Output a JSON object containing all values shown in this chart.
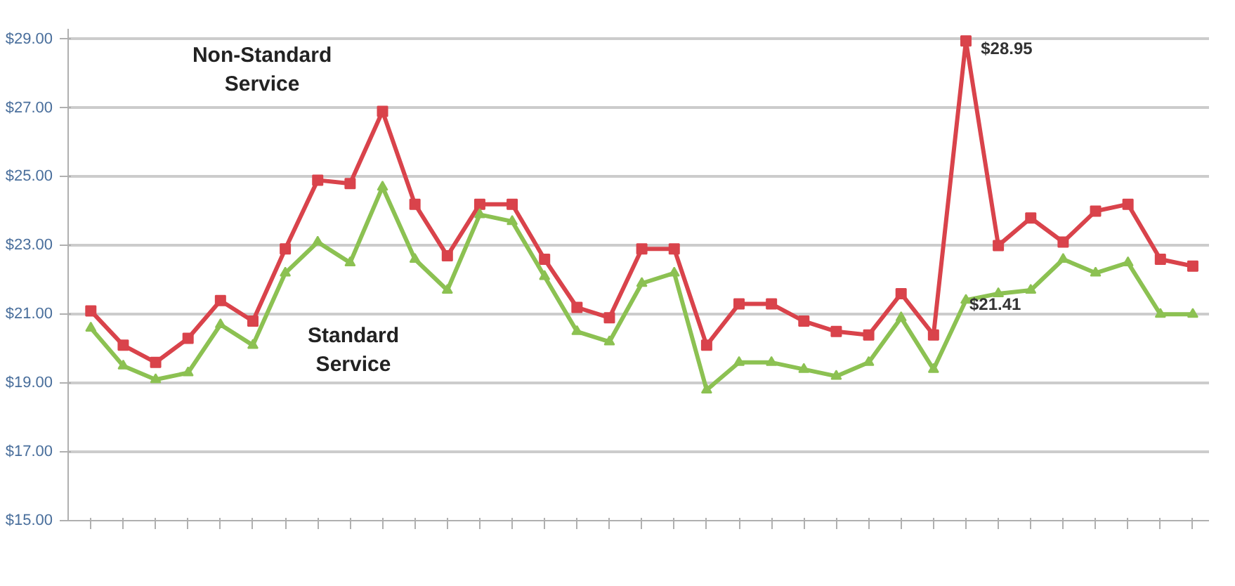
{
  "chart_data": {
    "type": "line",
    "categories": [
      null,
      null,
      null,
      null,
      null,
      null,
      null,
      null,
      null,
      null,
      null,
      null,
      null,
      null,
      null,
      null,
      null,
      null,
      null,
      null,
      null,
      null,
      null,
      null,
      null,
      null,
      null,
      null,
      null,
      null,
      null,
      null,
      null,
      null,
      null
    ],
    "ylim": [
      15,
      29.3
    ],
    "yticks": [
      {
        "value": 15,
        "label": "$15.00"
      },
      {
        "value": 17,
        "label": "$17.00"
      },
      {
        "value": 19,
        "label": "$19.00"
      },
      {
        "value": 21,
        "label": "$21.00"
      },
      {
        "value": 23,
        "label": "$23.00"
      },
      {
        "value": 25,
        "label": "$25.00"
      },
      {
        "value": 27,
        "label": "$27.00"
      },
      {
        "value": 29,
        "label": "$29.00"
      }
    ],
    "grid": "y",
    "series": [
      {
        "name": "Non-Standard Service",
        "color": "#d9434b",
        "marker": "square",
        "values": [
          21.1,
          20.1,
          19.6,
          20.3,
          21.4,
          20.8,
          22.9,
          24.9,
          24.8,
          26.9,
          24.2,
          22.7,
          24.2,
          24.2,
          22.6,
          21.2,
          20.9,
          22.9,
          22.9,
          20.1,
          21.3,
          21.3,
          20.8,
          20.5,
          20.4,
          21.6,
          20.4,
          28.95,
          23.0,
          23.8,
          23.1,
          24.0,
          24.2,
          22.6,
          22.4
        ]
      },
      {
        "name": "Standard Service",
        "color": "#8cc152",
        "marker": "triangle",
        "values": [
          20.6,
          19.5,
          19.1,
          19.3,
          20.7,
          20.1,
          22.2,
          23.1,
          22.5,
          24.7,
          22.6,
          21.7,
          23.9,
          23.7,
          22.1,
          20.5,
          20.2,
          21.9,
          22.2,
          18.8,
          19.6,
          19.6,
          19.4,
          19.2,
          19.6,
          20.9,
          19.4,
          21.41,
          21.6,
          21.7,
          22.6,
          22.2,
          22.5,
          21.0,
          21.0
        ]
      }
    ],
    "annotations": [
      "$28.95",
      "$21.41"
    ]
  }
}
